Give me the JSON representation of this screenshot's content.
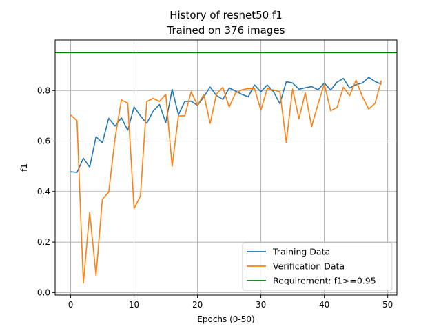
{
  "chart_data": {
    "type": "line",
    "title": "History of resnet50 f1",
    "subtitle": "Trained on 376 images",
    "xlabel": "Epochs (0-50)",
    "ylabel": "f1",
    "xlim": [
      -2.45,
      51.45
    ],
    "ylim": [
      -0.01,
      1.0
    ],
    "xticks": [
      0,
      10,
      20,
      30,
      40,
      50
    ],
    "yticks": [
      0.0,
      0.2,
      0.4,
      0.6,
      0.8
    ],
    "grid": true,
    "legend_position": "lower-right",
    "x": [
      0,
      1,
      2,
      3,
      4,
      5,
      6,
      7,
      8,
      9,
      10,
      11,
      12,
      13,
      14,
      15,
      16,
      17,
      18,
      19,
      20,
      21,
      22,
      23,
      24,
      25,
      26,
      27,
      28,
      29,
      30,
      31,
      32,
      33,
      34,
      35,
      36,
      37,
      38,
      39,
      40,
      41,
      42,
      43,
      44,
      45,
      46,
      47,
      48,
      49
    ],
    "series": [
      {
        "name": "Training Data",
        "color": "#1f77b4",
        "values": [
          0.478,
          0.476,
          0.532,
          0.497,
          0.617,
          0.593,
          0.69,
          0.659,
          0.692,
          0.643,
          0.735,
          0.7,
          0.67,
          0.718,
          0.745,
          0.673,
          0.805,
          0.704,
          0.757,
          0.758,
          0.741,
          0.775,
          0.814,
          0.78,
          0.765,
          0.81,
          0.798,
          0.785,
          0.775,
          0.822,
          0.795,
          0.822,
          0.795,
          0.748,
          0.835,
          0.83,
          0.805,
          0.811,
          0.816,
          0.803,
          0.83,
          0.802,
          0.833,
          0.848,
          0.81,
          0.823,
          0.83,
          0.852,
          0.836,
          0.825
        ]
      },
      {
        "name": "Verification Data",
        "color": "#ff7f0e",
        "values": [
          0.703,
          0.681,
          0.038,
          0.318,
          0.068,
          0.37,
          0.398,
          0.611,
          0.763,
          0.75,
          0.333,
          0.382,
          0.756,
          0.769,
          0.757,
          0.785,
          0.5,
          0.7,
          0.7,
          0.795,
          0.742,
          0.784,
          0.67,
          0.787,
          0.812,
          0.735,
          0.79,
          0.803,
          0.808,
          0.807,
          0.722,
          0.808,
          0.802,
          0.795,
          0.595,
          0.806,
          0.688,
          0.791,
          0.657,
          0.745,
          0.826,
          0.72,
          0.733,
          0.813,
          0.78,
          0.841,
          0.776,
          0.727,
          0.749,
          0.84
        ]
      }
    ],
    "reference_line": {
      "name": "Requirement: f1>=0.95",
      "y": 0.95,
      "color": "#008000"
    }
  }
}
